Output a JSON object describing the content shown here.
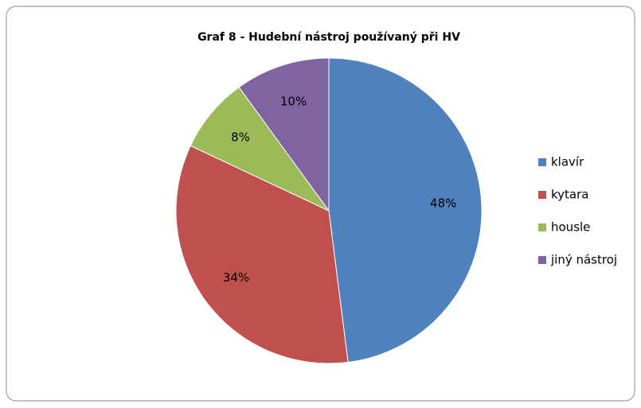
{
  "chart_data": {
    "type": "pie",
    "title": "Graf 8 - Hudební nástroj používaný při HV",
    "categories": [
      "klavír",
      "kytara",
      "housle",
      "jiný nástroj"
    ],
    "values": [
      48,
      34,
      8,
      10
    ],
    "value_labels": [
      "48%",
      "34%",
      "8%",
      "10%"
    ],
    "colors": [
      "#4f81bd",
      "#c0504d",
      "#9bbb59",
      "#8064a2"
    ],
    "legend": "right"
  }
}
